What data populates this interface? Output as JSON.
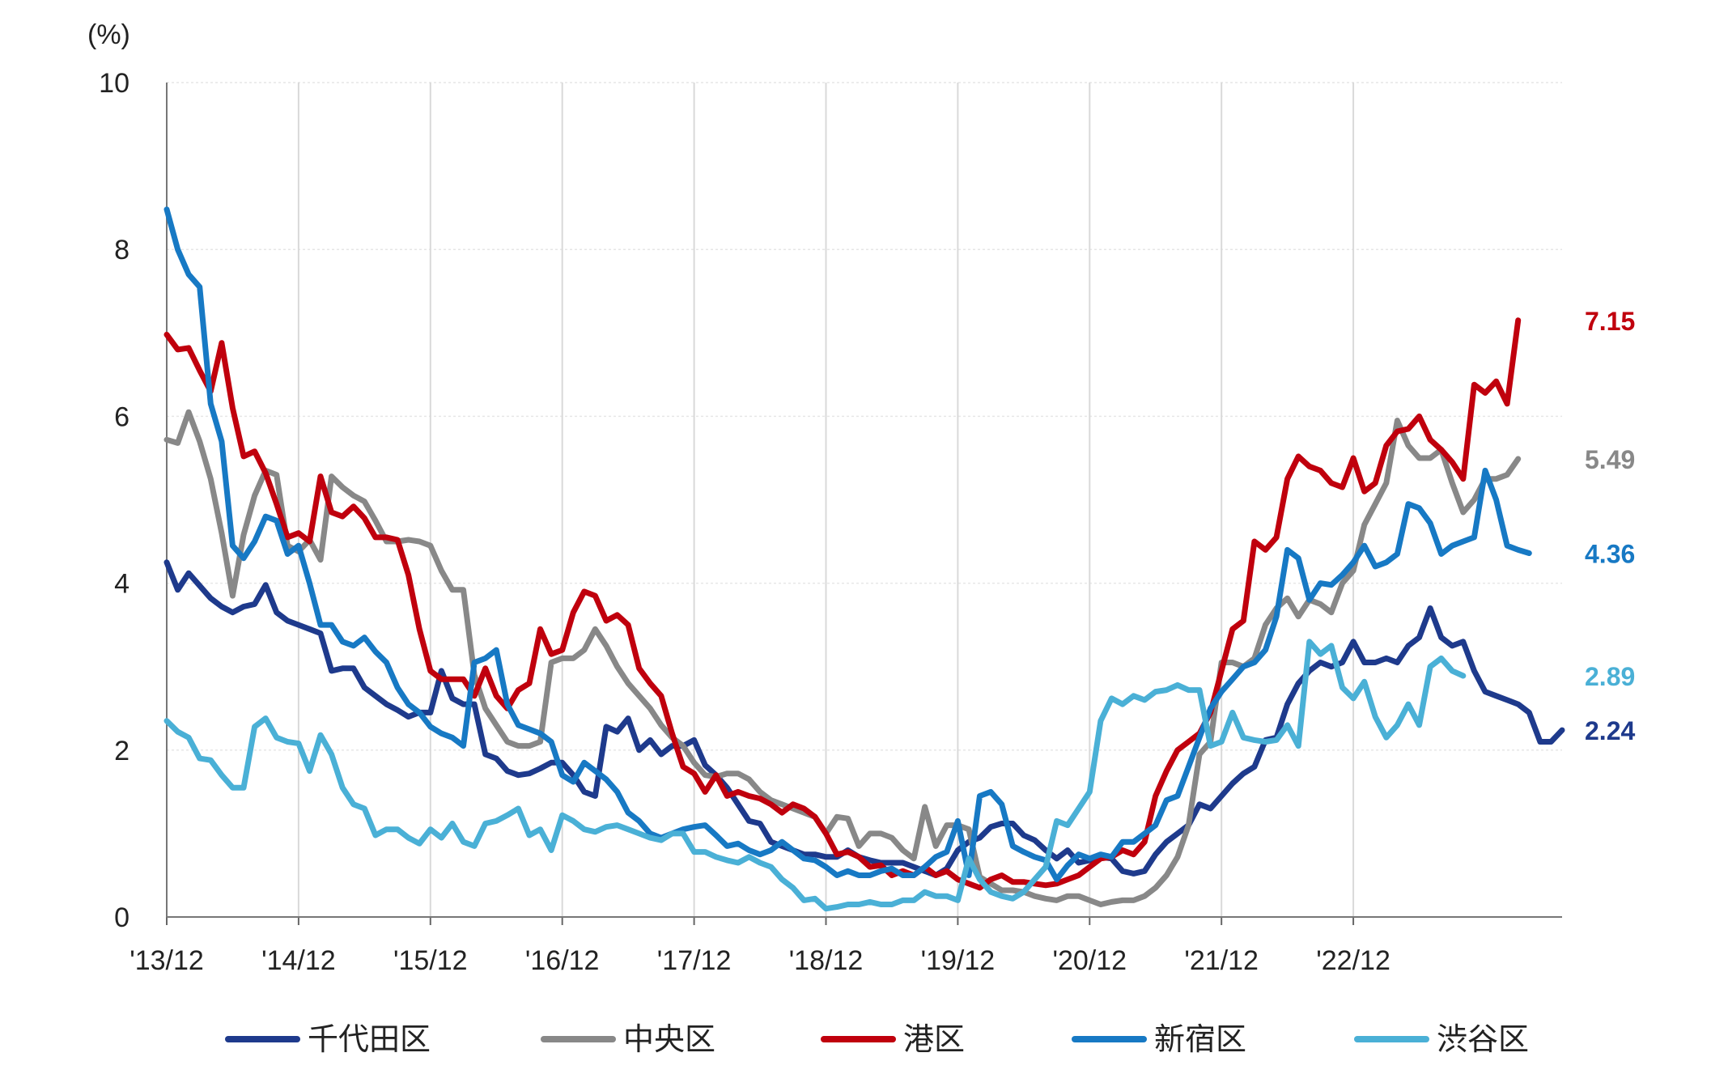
{
  "chart_data": {
    "type": "line",
    "y_unit": "(%)",
    "ylim": [
      0,
      10
    ],
    "y_ticks": [
      "0",
      "2",
      "4",
      "6",
      "8",
      "10"
    ],
    "x_tick_labels": [
      "'13/12",
      "'14/12",
      "'15/12",
      "'16/12",
      "'17/12",
      "'18/12",
      "'19/12",
      "'20/12",
      "'21/12",
      "'22/12"
    ],
    "x_start": "2013-12",
    "x_end": "2023-07",
    "grid": {
      "vertical": true,
      "horizontal": true
    },
    "legend_position": "bottom",
    "series": [
      {
        "name": "千代田区",
        "color": "#1e3a8c",
        "end_label": "2.24",
        "values": [
          4.25,
          3.92,
          4.12,
          3.97,
          3.82,
          3.72,
          3.65,
          3.72,
          3.75,
          3.98,
          3.65,
          3.55,
          3.5,
          3.45,
          3.4,
          2.95,
          2.98,
          2.98,
          2.75,
          2.65,
          2.55,
          2.48,
          2.4,
          2.45,
          2.45,
          2.95,
          2.62,
          2.55,
          2.55,
          1.95,
          1.9,
          1.75,
          1.7,
          1.72,
          1.78,
          1.85,
          1.85,
          1.7,
          1.5,
          1.45,
          2.28,
          2.22,
          2.38,
          2.0,
          2.12,
          1.95,
          2.05,
          2.05,
          2.12,
          1.82,
          1.7,
          1.55,
          1.35,
          1.15,
          1.12,
          0.9,
          0.85,
          0.8,
          0.75,
          0.75,
          0.72,
          0.72,
          0.8,
          0.72,
          0.68,
          0.65,
          0.65,
          0.65,
          0.6,
          0.55,
          0.5,
          0.58,
          0.8,
          0.9,
          0.95,
          1.08,
          1.12,
          1.12,
          0.98,
          0.92,
          0.8,
          0.7,
          0.8,
          0.65,
          0.68,
          0.72,
          0.7,
          0.55,
          0.52,
          0.55,
          0.75,
          0.9,
          1.0,
          1.1,
          1.35,
          1.3,
          1.45,
          1.6,
          1.72,
          1.8,
          2.12,
          2.15,
          2.55,
          2.8,
          2.95,
          3.05,
          3.0,
          3.05,
          3.3,
          3.05,
          3.05,
          3.1,
          3.05,
          3.25,
          3.35,
          3.7,
          3.35,
          3.25,
          3.3,
          2.95,
          2.7,
          2.65,
          2.6,
          2.55,
          2.45,
          2.1,
          2.1,
          2.24
        ]
      },
      {
        "name": "中央区",
        "color": "#888888",
        "end_label": "5.49",
        "values": [
          5.72,
          5.68,
          6.05,
          5.7,
          5.25,
          4.6,
          3.85,
          4.58,
          5.05,
          5.35,
          5.3,
          4.45,
          4.38,
          4.52,
          4.28,
          5.28,
          5.15,
          5.05,
          4.98,
          4.75,
          4.5,
          4.5,
          4.52,
          4.5,
          4.45,
          4.15,
          3.92,
          3.92,
          2.9,
          2.5,
          2.3,
          2.1,
          2.05,
          2.05,
          2.1,
          3.05,
          3.1,
          3.1,
          3.2,
          3.45,
          3.25,
          3.0,
          2.8,
          2.65,
          2.5,
          2.3,
          2.15,
          2.05,
          1.85,
          1.7,
          1.68,
          1.72,
          1.72,
          1.65,
          1.5,
          1.4,
          1.35,
          1.3,
          1.25,
          1.2,
          1.0,
          1.2,
          1.18,
          0.85,
          1.0,
          1.0,
          0.95,
          0.8,
          0.7,
          1.32,
          0.85,
          1.1,
          1.1,
          1.05,
          0.48,
          0.4,
          0.32,
          0.32,
          0.3,
          0.25,
          0.22,
          0.2,
          0.25,
          0.25,
          0.2,
          0.15,
          0.18,
          0.2,
          0.2,
          0.25,
          0.35,
          0.5,
          0.72,
          1.1,
          1.95,
          2.1,
          3.05,
          3.05,
          3.0,
          3.1,
          3.5,
          3.7,
          3.82,
          3.6,
          3.8,
          3.75,
          3.65,
          4.0,
          4.15,
          4.7,
          4.95,
          5.2,
          5.95,
          5.65,
          5.5,
          5.5,
          5.6,
          5.2,
          4.85,
          5.0,
          5.25,
          5.25,
          5.3,
          5.49
        ]
      },
      {
        "name": "港区",
        "color": "#c0000d",
        "end_label": "7.15",
        "values": [
          6.98,
          6.8,
          6.82,
          6.55,
          6.3,
          6.88,
          6.1,
          5.52,
          5.58,
          5.32,
          4.95,
          4.55,
          4.6,
          4.5,
          5.28,
          4.85,
          4.8,
          4.92,
          4.78,
          4.55,
          4.55,
          4.52,
          4.1,
          3.45,
          2.95,
          2.85,
          2.85,
          2.85,
          2.65,
          2.98,
          2.65,
          2.5,
          2.72,
          2.8,
          3.45,
          3.15,
          3.2,
          3.65,
          3.9,
          3.85,
          3.55,
          3.62,
          3.5,
          2.98,
          2.8,
          2.65,
          2.2,
          1.8,
          1.72,
          1.5,
          1.7,
          1.45,
          1.5,
          1.45,
          1.42,
          1.35,
          1.25,
          1.35,
          1.3,
          1.2,
          1.0,
          0.75,
          0.78,
          0.72,
          0.6,
          0.62,
          0.5,
          0.55,
          0.5,
          0.6,
          0.5,
          0.55,
          0.45,
          0.4,
          0.35,
          0.45,
          0.5,
          0.42,
          0.42,
          0.4,
          0.38,
          0.4,
          0.45,
          0.5,
          0.6,
          0.7,
          0.72,
          0.8,
          0.75,
          0.9,
          1.45,
          1.75,
          2.0,
          2.1,
          2.2,
          2.45,
          2.95,
          3.45,
          3.55,
          4.5,
          4.4,
          4.55,
          5.25,
          5.52,
          5.4,
          5.35,
          5.2,
          5.15,
          5.5,
          5.1,
          5.2,
          5.65,
          5.82,
          5.85,
          6.0,
          5.72,
          5.6,
          5.45,
          5.25,
          6.38,
          6.28,
          6.42,
          6.15,
          7.15
        ]
      },
      {
        "name": "新宿区",
        "color": "#1779c4",
        "end_label": "4.36",
        "values": [
          8.48,
          8.0,
          7.7,
          7.55,
          6.15,
          5.7,
          4.45,
          4.3,
          4.5,
          4.8,
          4.75,
          4.35,
          4.45,
          4.0,
          3.5,
          3.5,
          3.3,
          3.25,
          3.35,
          3.18,
          3.05,
          2.75,
          2.55,
          2.45,
          2.28,
          2.2,
          2.15,
          2.05,
          3.05,
          3.1,
          3.2,
          2.55,
          2.3,
          2.25,
          2.2,
          2.1,
          1.7,
          1.62,
          1.85,
          1.75,
          1.65,
          1.5,
          1.25,
          1.15,
          1.0,
          0.95,
          1.0,
          1.05,
          1.08,
          1.1,
          0.98,
          0.85,
          0.88,
          0.8,
          0.75,
          0.8,
          0.9,
          0.8,
          0.7,
          0.68,
          0.6,
          0.5,
          0.55,
          0.5,
          0.5,
          0.55,
          0.58,
          0.5,
          0.5,
          0.6,
          0.72,
          0.78,
          1.15,
          0.5,
          1.45,
          1.5,
          1.35,
          0.85,
          0.78,
          0.72,
          0.68,
          0.45,
          0.62,
          0.75,
          0.7,
          0.75,
          0.72,
          0.9,
          0.9,
          1.0,
          1.1,
          1.4,
          1.45,
          1.8,
          2.15,
          2.5,
          2.7,
          2.85,
          3.0,
          3.05,
          3.2,
          3.6,
          4.4,
          4.3,
          3.8,
          4.0,
          3.98,
          4.1,
          4.25,
          4.45,
          4.2,
          4.25,
          4.35,
          4.95,
          4.9,
          4.72,
          4.35,
          4.45,
          4.5,
          4.55,
          5.35,
          5.0,
          4.45,
          4.4,
          4.36
        ]
      },
      {
        "name": "渋谷区",
        "color": "#4ab0d6",
        "end_label": "2.89",
        "values": [
          2.35,
          2.22,
          2.15,
          1.9,
          1.88,
          1.7,
          1.55,
          1.55,
          2.28,
          2.38,
          2.15,
          2.1,
          2.08,
          1.75,
          2.18,
          1.95,
          1.55,
          1.35,
          1.3,
          0.98,
          1.05,
          1.05,
          0.95,
          0.88,
          1.05,
          0.95,
          1.12,
          0.9,
          0.85,
          1.12,
          1.15,
          1.22,
          1.3,
          0.98,
          1.05,
          0.8,
          1.22,
          1.15,
          1.05,
          1.02,
          1.08,
          1.1,
          1.05,
          1.0,
          0.95,
          0.92,
          1.0,
          1.0,
          0.78,
          0.78,
          0.72,
          0.68,
          0.65,
          0.72,
          0.65,
          0.6,
          0.45,
          0.35,
          0.2,
          0.22,
          0.1,
          0.12,
          0.15,
          0.15,
          0.18,
          0.15,
          0.15,
          0.2,
          0.2,
          0.3,
          0.25,
          0.25,
          0.2,
          0.7,
          0.45,
          0.3,
          0.25,
          0.22,
          0.3,
          0.45,
          0.6,
          1.15,
          1.1,
          1.3,
          1.5,
          2.35,
          2.62,
          2.55,
          2.65,
          2.6,
          2.7,
          2.72,
          2.78,
          2.72,
          2.72,
          2.05,
          2.1,
          2.45,
          2.15,
          2.12,
          2.1,
          2.12,
          2.3,
          2.05,
          3.3,
          3.15,
          3.25,
          2.75,
          2.62,
          2.82,
          2.4,
          2.15,
          2.3,
          2.55,
          2.3,
          3.0,
          3.1,
          2.95,
          2.89
        ]
      }
    ]
  }
}
